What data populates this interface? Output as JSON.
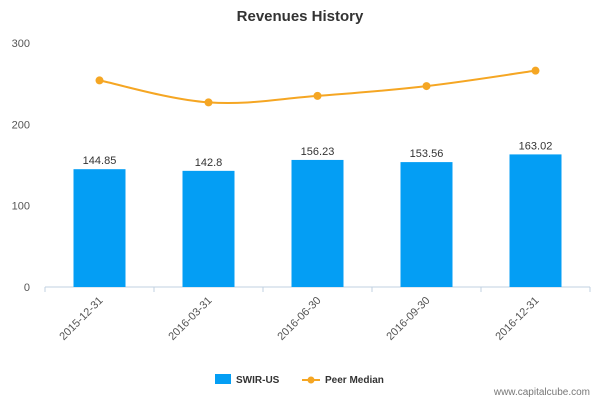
{
  "chart_data": {
    "type": "bar",
    "title": "Revenues History",
    "categories": [
      "2015-12-31",
      "2016-03-31",
      "2016-06-30",
      "2016-09-30",
      "2016-12-31"
    ],
    "series": [
      {
        "name": "SWIR-US",
        "kind": "bar",
        "color": "#049ef4",
        "values": [
          144.85,
          142.8,
          156.23,
          153.56,
          163.02
        ],
        "value_labels": [
          "144.85",
          "142.8",
          "156.23",
          "153.56",
          "163.02"
        ]
      },
      {
        "name": "Peer Median",
        "kind": "line",
        "color": "#f5a623",
        "values": [
          254,
          227,
          235,
          247,
          266
        ]
      }
    ],
    "ylim": [
      0,
      300
    ],
    "yticks": [
      0,
      100,
      200,
      300
    ],
    "grid": false,
    "legend_position": "bottom-center",
    "xlabel": "",
    "ylabel": ""
  },
  "footer": {
    "source": "www.capitalcube.com"
  }
}
